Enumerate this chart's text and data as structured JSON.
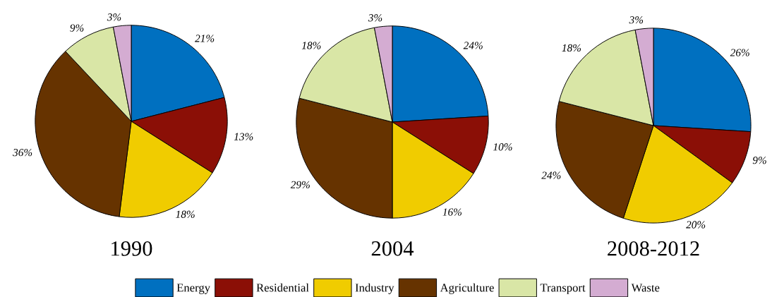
{
  "chart_data": [
    {
      "type": "pie",
      "title": "1990",
      "categories": [
        "Energy",
        "Residential",
        "Industry",
        "Agriculture",
        "Transport",
        "Waste"
      ],
      "values": [
        21,
        13,
        18,
        36,
        9,
        3
      ],
      "value_labels": [
        "21%",
        "13%",
        "18%",
        "36%",
        "9%",
        "3%"
      ],
      "colors": [
        "#0070c0",
        "#8b0f06",
        "#f0cc00",
        "#663300",
        "#d9e6a6",
        "#d4acd2"
      ],
      "legend": "bottom"
    },
    {
      "type": "pie",
      "title": "2004",
      "values": [
        24,
        10,
        16,
        29,
        18,
        3
      ],
      "value_labels": [
        "24%",
        "10%",
        "16%",
        "29%",
        "18%",
        "3%"
      ],
      "colors": [
        "#0070c0",
        "#8b0f06",
        "#f0cc00",
        "#663300",
        "#d9e6a6",
        "#d4acd2"
      ]
    },
    {
      "type": "pie",
      "title": "2008-2012",
      "values": [
        26,
        9,
        20,
        24,
        18,
        3
      ],
      "value_labels": [
        "26%",
        "9%",
        "20%",
        "24%",
        "18%",
        "3%"
      ],
      "colors": [
        "#0070c0",
        "#8b0f06",
        "#f0cc00",
        "#663300",
        "#d9e6a6",
        "#d4acd2"
      ]
    }
  ]
}
